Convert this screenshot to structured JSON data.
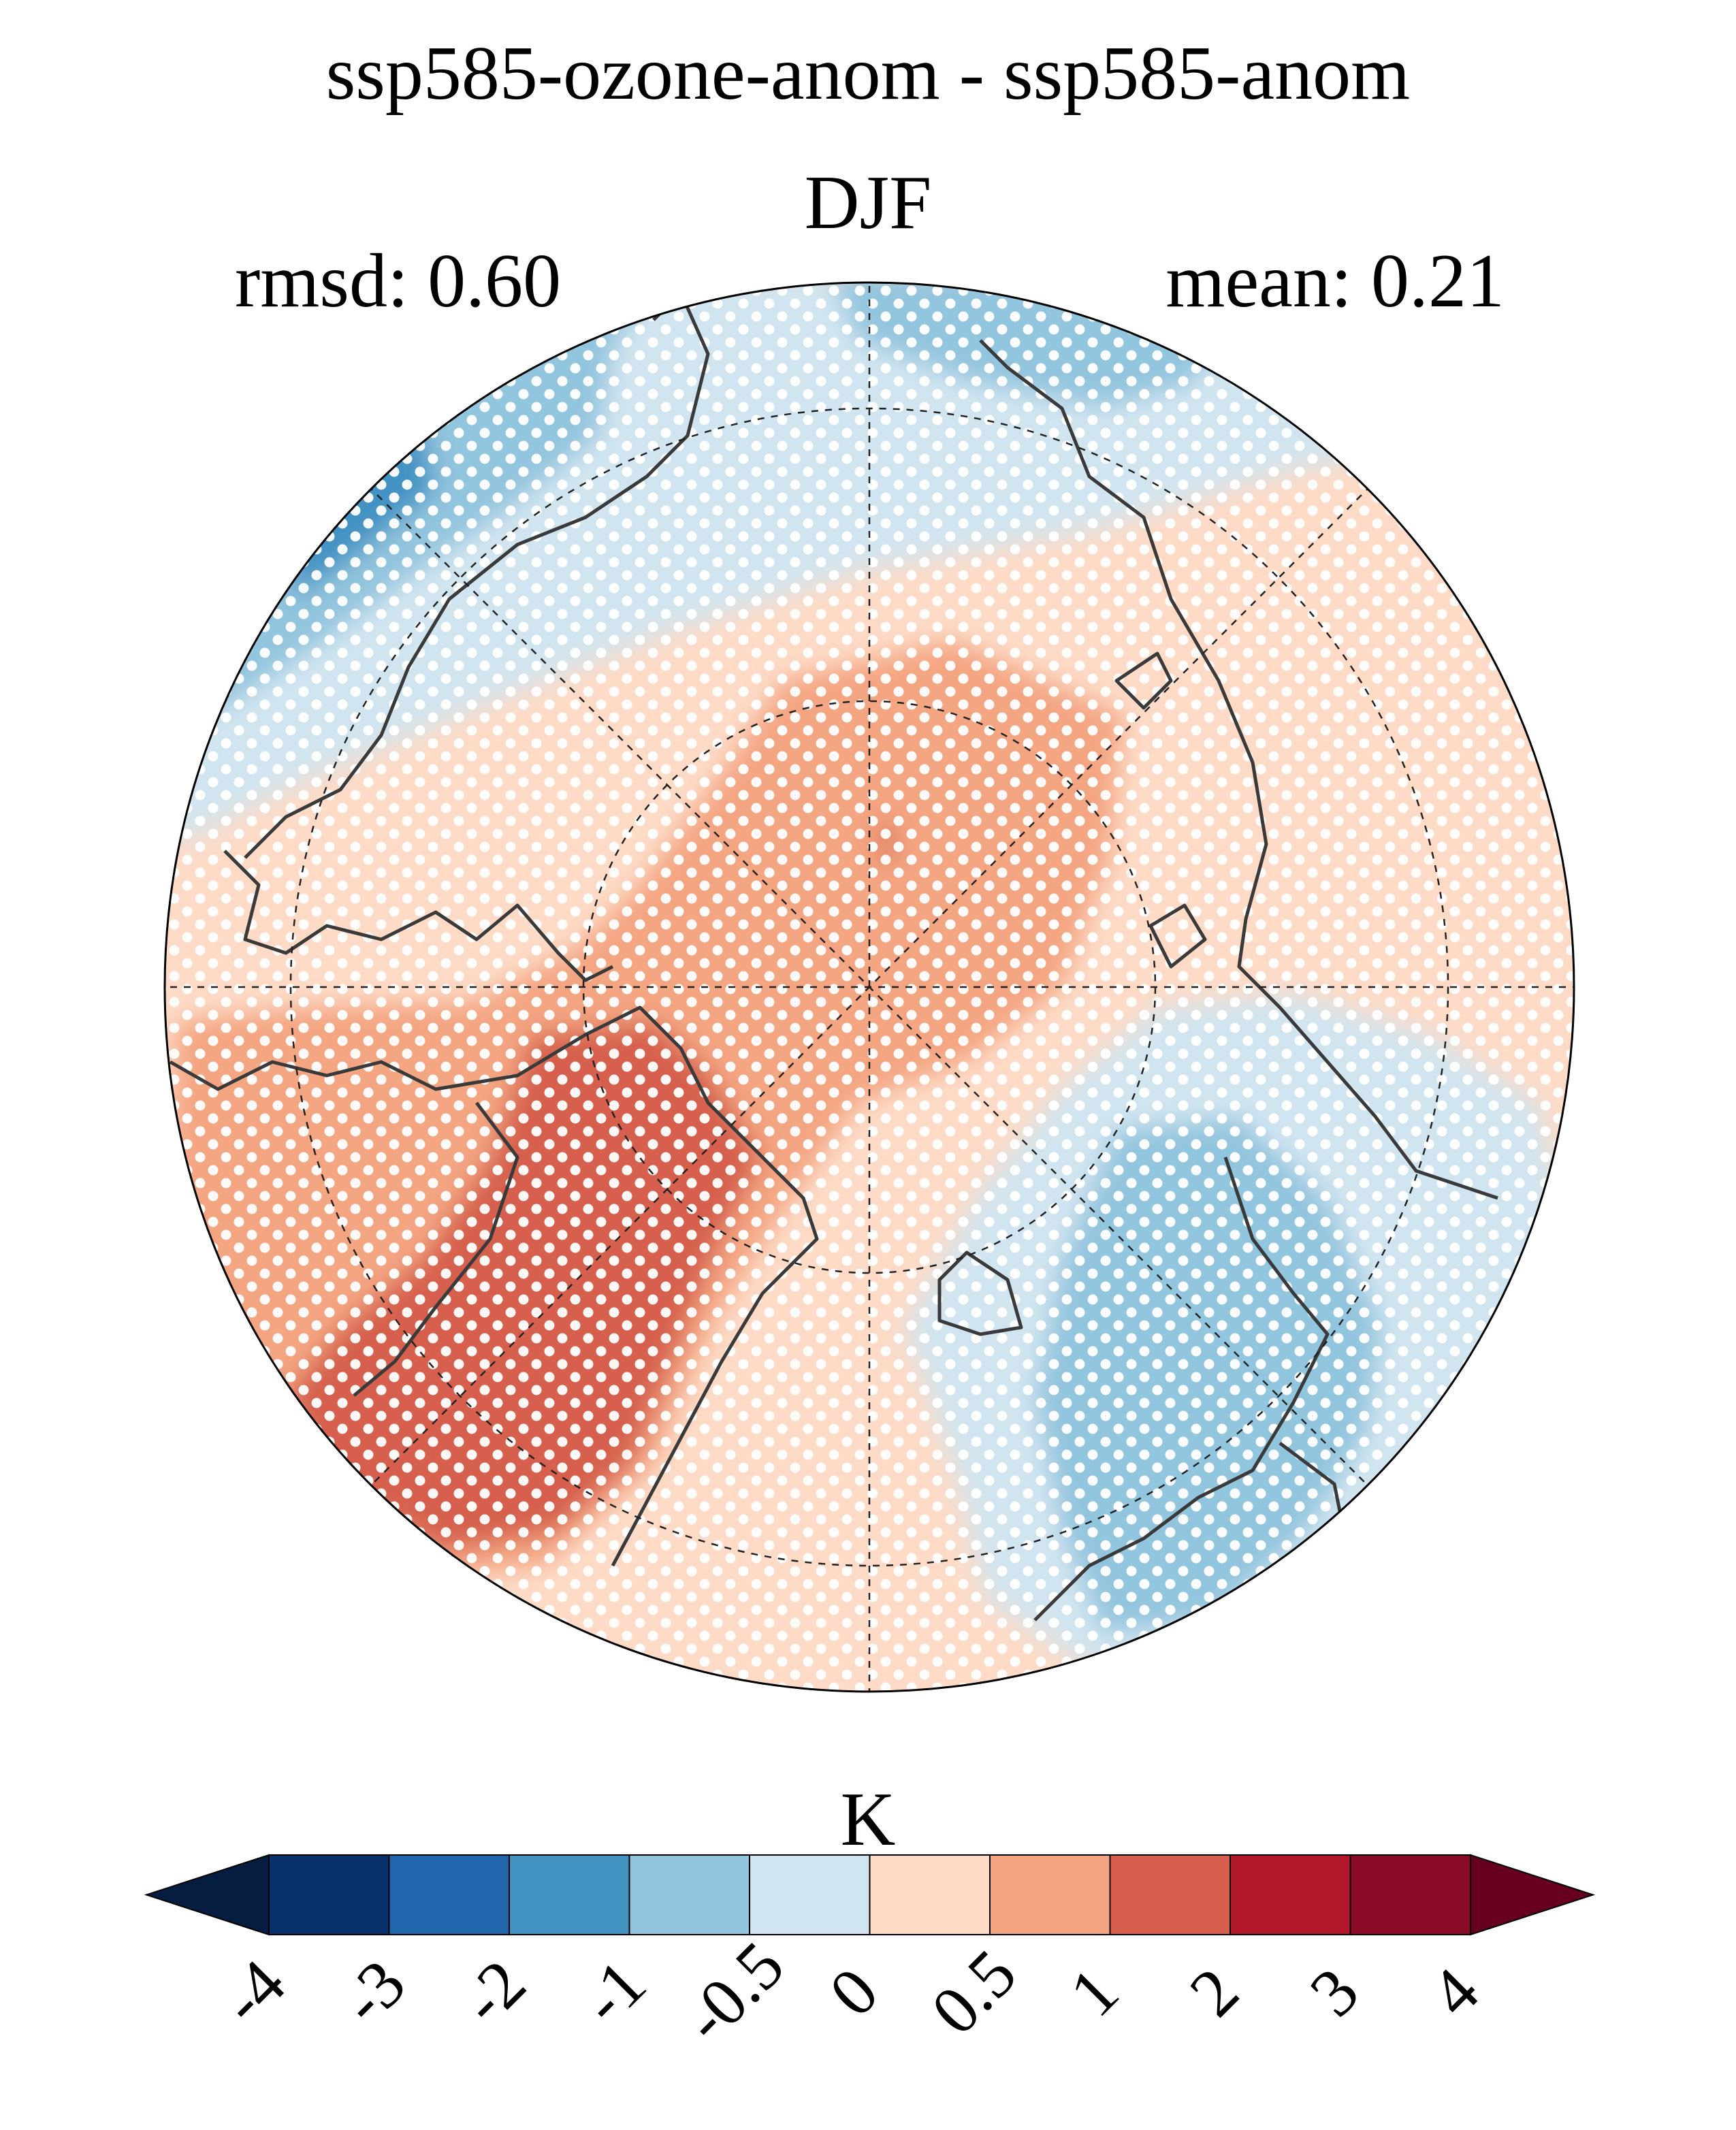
{
  "title": "ssp585-ozone-anom - ssp585-anom",
  "season": "DJF",
  "rmsd_text": "rmsd: 0.60",
  "mean_text": "mean: 0.21",
  "colorbar": {
    "unit": "K",
    "tick_labels": [
      "-4",
      "-3",
      "-2",
      "-1",
      "-0.5",
      "0",
      "0.5",
      "1",
      "2",
      "3",
      "4"
    ],
    "colors": [
      "#08306b",
      "#2166ac",
      "#4393c3",
      "#92c5de",
      "#d1e5f0",
      "#fddbc7",
      "#f4a582",
      "#d6604d",
      "#b2182b",
      "#8b0a26"
    ],
    "under_color": "#051d40",
    "over_color": "#67001f",
    "extend": "both"
  },
  "map": {
    "projection": "north-polar-stereographic",
    "stippling": "white-dots"
  }
}
